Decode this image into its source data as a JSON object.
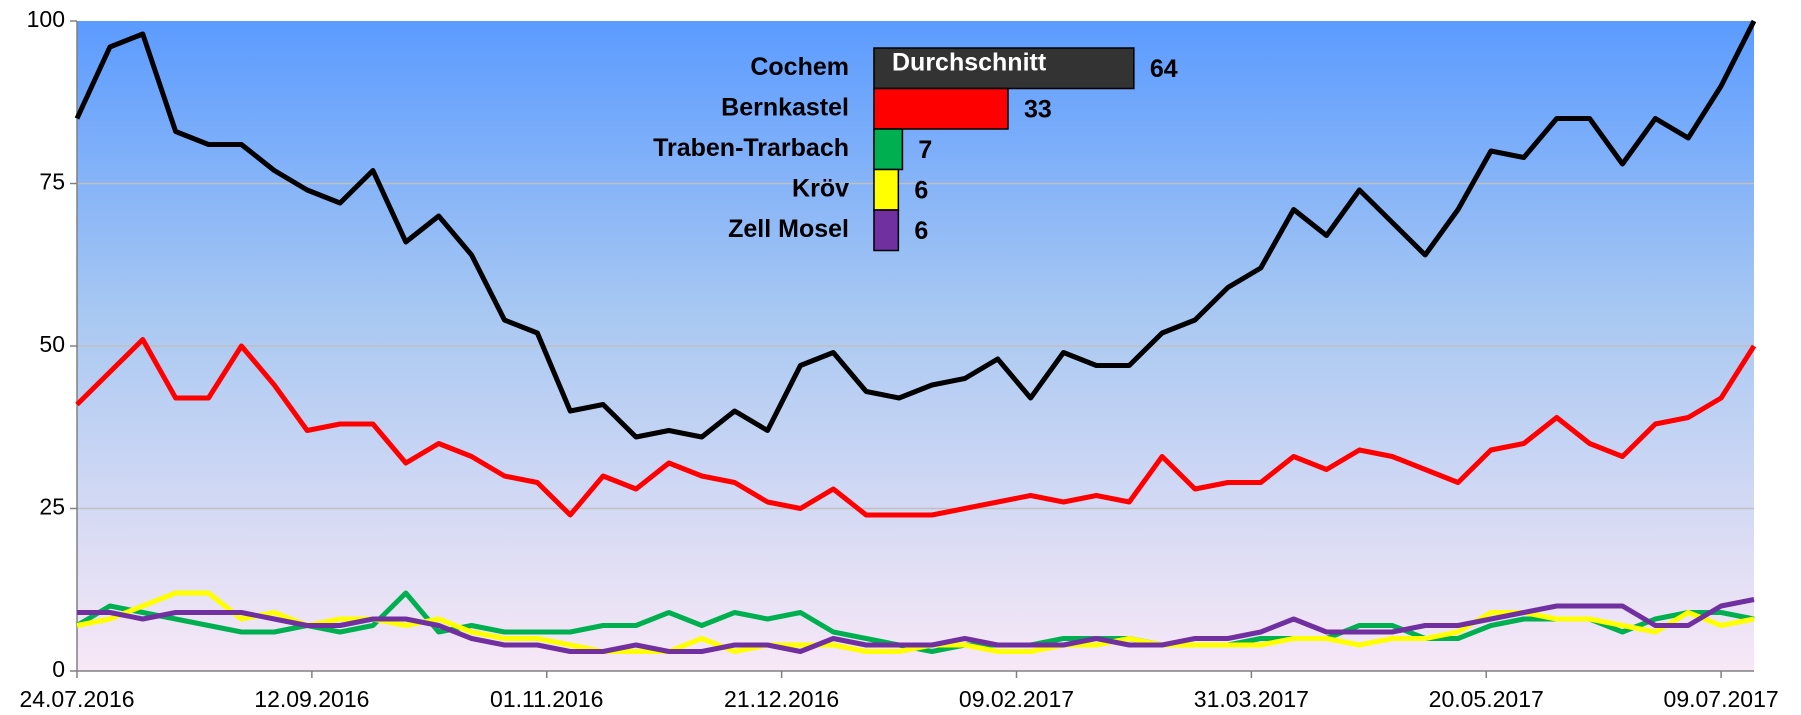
{
  "chart_data": [
    {
      "type": "line",
      "x": [
        "24.07.2016",
        "31.07.2016",
        "07.08.2016",
        "14.08.2016",
        "21.08.2016",
        "28.08.2016",
        "04.09.2016",
        "11.09.2016",
        "18.09.2016",
        "25.09.2016",
        "02.10.2016",
        "09.10.2016",
        "16.10.2016",
        "23.10.2016",
        "30.10.2016",
        "06.11.2016",
        "13.11.2016",
        "20.11.2016",
        "27.11.2016",
        "04.12.2016",
        "11.12.2016",
        "18.12.2016",
        "25.12.2016",
        "01.01.2017",
        "08.01.2017",
        "15.01.2017",
        "22.01.2017",
        "29.01.2017",
        "05.02.2017",
        "12.02.2017",
        "19.02.2017",
        "26.02.2017",
        "05.03.2017",
        "12.03.2017",
        "19.03.2017",
        "26.03.2017",
        "02.04.2017",
        "09.04.2017",
        "16.04.2017",
        "23.04.2017",
        "30.04.2017",
        "07.05.2017",
        "14.05.2017",
        "21.05.2017",
        "28.05.2017",
        "04.06.2017",
        "11.06.2017",
        "18.06.2017",
        "25.06.2017",
        "02.07.2017",
        "09.07.2017",
        "16.07.2017"
      ],
      "series": [
        {
          "name": "Cochem",
          "color": "#000000",
          "values": [
            85,
            96,
            98,
            83,
            81,
            81,
            77,
            74,
            72,
            77,
            66,
            70,
            64,
            54,
            52,
            40,
            41,
            36,
            37,
            36,
            40,
            37,
            47,
            49,
            43,
            42,
            44,
            45,
            48,
            42,
            49,
            47,
            47,
            52,
            54,
            59,
            62,
            71,
            67,
            74,
            69,
            64,
            71,
            80,
            79,
            85,
            85,
            78,
            85,
            82,
            90,
            100
          ]
        },
        {
          "name": "Bernkastel",
          "color": "#ff0000",
          "values": [
            41,
            46,
            51,
            42,
            42,
            50,
            44,
            37,
            38,
            38,
            32,
            35,
            33,
            30,
            29,
            24,
            30,
            28,
            32,
            30,
            29,
            26,
            25,
            28,
            24,
            24,
            24,
            25,
            26,
            27,
            26,
            27,
            26,
            33,
            28,
            29,
            29,
            33,
            31,
            34,
            33,
            31,
            29,
            34,
            35,
            39,
            35,
            33,
            38,
            39,
            42,
            50
          ]
        },
        {
          "name": "Traben-Trarbach",
          "color": "#00b050",
          "values": [
            7,
            10,
            9,
            8,
            7,
            6,
            6,
            7,
            6,
            7,
            12,
            6,
            7,
            6,
            6,
            6,
            7,
            7,
            9,
            7,
            9,
            8,
            9,
            6,
            5,
            4,
            3,
            4,
            4,
            4,
            5,
            5,
            5,
            4,
            4,
            4,
            5,
            5,
            5,
            7,
            7,
            5,
            5,
            7,
            8,
            8,
            8,
            6,
            8,
            9,
            9,
            8
          ]
        },
        {
          "name": "Kröv",
          "color": "#ffff00",
          "values": [
            7,
            8,
            10,
            12,
            12,
            8,
            9,
            7,
            8,
            8,
            7,
            8,
            6,
            5,
            5,
            4,
            3,
            3,
            3,
            5,
            3,
            4,
            4,
            4,
            3,
            3,
            4,
            4,
            3,
            3,
            4,
            4,
            5,
            4,
            4,
            4,
            4,
            5,
            5,
            4,
            5,
            5,
            6,
            9,
            9,
            8,
            8,
            7,
            6,
            9,
            7,
            8
          ]
        },
        {
          "name": "Zell Mosel",
          "color": "#7030a0",
          "values": [
            9,
            9,
            8,
            9,
            9,
            9,
            8,
            7,
            7,
            8,
            8,
            7,
            5,
            4,
            4,
            3,
            3,
            4,
            3,
            3,
            4,
            4,
            3,
            5,
            4,
            4,
            4,
            5,
            4,
            4,
            4,
            5,
            4,
            4,
            5,
            5,
            6,
            8,
            6,
            6,
            6,
            7,
            7,
            8,
            9,
            10,
            10,
            10,
            7,
            7,
            10,
            11
          ]
        }
      ],
      "xlim": [
        "24.07.2016",
        "16.07.2017"
      ],
      "xticks": [
        "24.07.2016",
        "12.09.2016",
        "01.11.2016",
        "21.12.2016",
        "09.02.2017",
        "31.03.2017",
        "20.05.2017",
        "09.07.2017"
      ],
      "ylim": [
        0,
        100
      ],
      "yticks": [
        0,
        25,
        50,
        75,
        100
      ],
      "grid": true
    },
    {
      "type": "bar",
      "orientation": "horizontal",
      "title": "Durchschnitt",
      "categories": [
        "Cochem",
        "Bernkastel",
        "Traben-Trarbach",
        "Kröv",
        "Zell Mosel"
      ],
      "values": [
        64,
        33,
        7,
        6,
        6
      ],
      "colors": [
        "#333333",
        "#ff0000",
        "#00b050",
        "#ffff00",
        "#7030a0"
      ]
    }
  ]
}
